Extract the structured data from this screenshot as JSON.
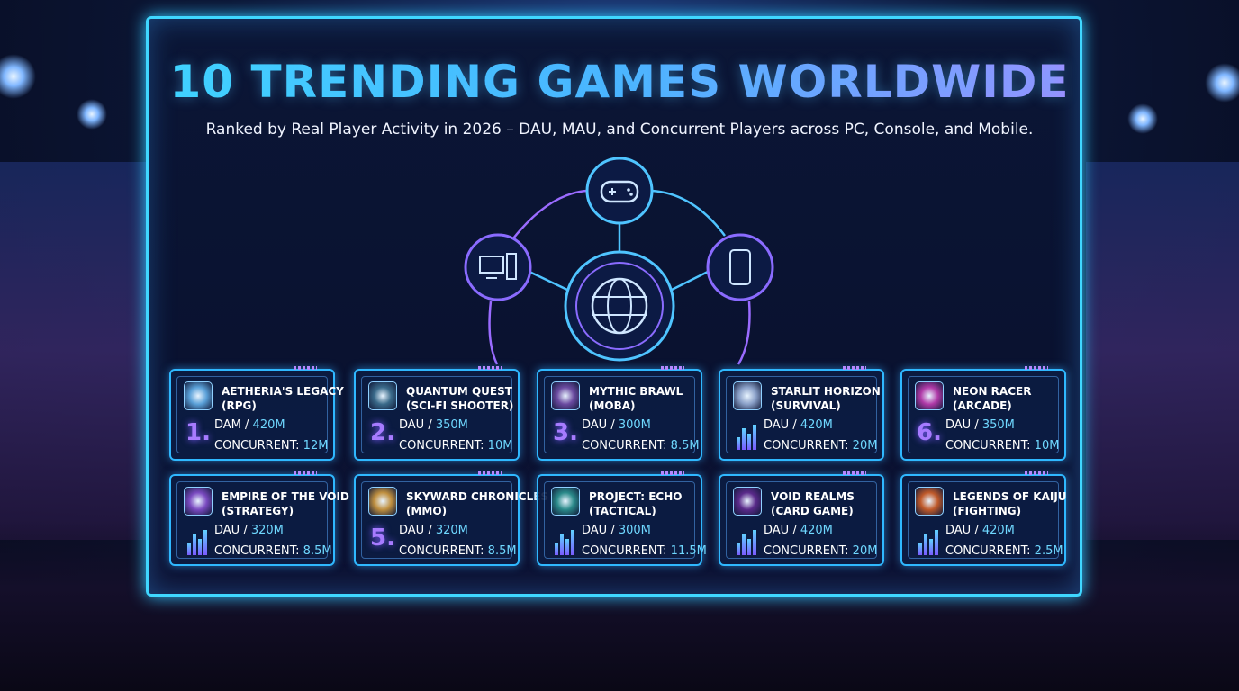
{
  "header": {
    "title": "10 TRENDING GAMES WORLDWIDE",
    "subtitle": "Ranked by Real Player Activity in 2026 – DAU, MAU, and Concurrent Players across PC, Console, and Mobile."
  },
  "cards": [
    {
      "rank": "1.",
      "name": "AETHERIA'S LEGACY",
      "genre": "(RPG)",
      "metric": "DAM /",
      "metric_value": "420M",
      "concurrent": "CONCURRENT:",
      "concurrent_value": "12M"
    },
    {
      "rank": "2.",
      "name": "QUANTUM QUEST",
      "genre": "(SCI-FI SHOOTER)",
      "metric": "DAU /",
      "metric_value": "350M",
      "concurrent": "CONCURRENT:",
      "concurrent_value": "10M"
    },
    {
      "rank": "3.",
      "name": "MYTHIC BRAWL",
      "genre": "(MOBA)",
      "metric": "DAU /",
      "metric_value": "300M",
      "concurrent": "CONCURRENT:",
      "concurrent_value": "8.5M"
    },
    {
      "name": "STARLIT HORIZON",
      "genre": "(SURVIVAL)",
      "metric": "DAU /",
      "metric_value": "420M",
      "concurrent": "CONCURRENT:",
      "concurrent_value": "20M"
    },
    {
      "rank": "6.",
      "name": "NEON RACER",
      "genre": "(ARCADE)",
      "metric": "DAU /",
      "metric_value": "350M",
      "concurrent": "CONCURRENT:",
      "concurrent_value": "10M"
    },
    {
      "name": "EMPIRE OF THE VOID",
      "genre": "(STRATEGY)",
      "metric": "DAU /",
      "metric_value": "320M",
      "concurrent": "CONCURRENT:",
      "concurrent_value": "8.5M"
    },
    {
      "rank": "5.",
      "name": "SKYWARD CHRONICLES",
      "genre": "(MMO)",
      "metric": "DAU /",
      "metric_value": "320M",
      "concurrent": "CONCURRENT:",
      "concurrent_value": "8.5M"
    },
    {
      "name": "PROJECT: ECHO",
      "genre": "(TACTICAL)",
      "metric": "DAU /",
      "metric_value": "300M",
      "concurrent": "CONCURRENT:",
      "concurrent_value": "11.5M"
    },
    {
      "name": "VOID REALMS",
      "genre": "(CARD GAME)",
      "metric": "DAU /",
      "metric_value": "420M",
      "concurrent": "CONCURRENT:",
      "concurrent_value": "20M"
    },
    {
      "name": "LEGENDS OF KAIJU",
      "genre": "(FIGHTING)",
      "metric": "DAU /",
      "metric_value": "420M",
      "concurrent": "CONCURRENT:",
      "concurrent_value": "2.5M"
    }
  ]
}
